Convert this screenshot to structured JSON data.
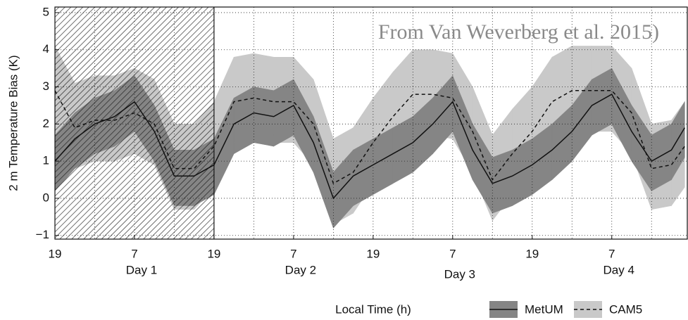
{
  "chart_data": {
    "type": "band-line",
    "annotation": "From Van Weverberg et al. 2015)",
    "y_label": "2 m Temperature Bias (K)",
    "x_label": "Local Time (h)",
    "xlim": [
      0,
      95.5
    ],
    "ylim": [
      -1.1,
      5.15
    ],
    "xticks": [
      {
        "value": 0,
        "label": "19"
      },
      {
        "value": 12,
        "label": "7"
      },
      {
        "value": 24,
        "label": "19"
      },
      {
        "value": 36,
        "label": "7"
      },
      {
        "value": 48,
        "label": "19"
      },
      {
        "value": 60,
        "label": "7"
      },
      {
        "value": 72,
        "label": "19"
      },
      {
        "value": 84,
        "label": "7"
      }
    ],
    "yticks": [
      {
        "value": -1,
        "label": "−1"
      },
      0,
      1,
      2,
      3,
      4,
      5
    ],
    "day_labels": [
      "Day 1",
      "Day 2",
      "Day 3",
      "Day 4"
    ],
    "shaded_region": [
      0,
      24
    ],
    "grid": true,
    "x": [
      0,
      3,
      6,
      9,
      12,
      15,
      18,
      21,
      24,
      27,
      30,
      33,
      36,
      39,
      42,
      45,
      48,
      51,
      54,
      57,
      60,
      63,
      66,
      69,
      72,
      75,
      78,
      81,
      84,
      87,
      90,
      93,
      95
    ],
    "series": [
      {
        "name": "CAM5",
        "color": "#111111",
        "band_color": "#c9c9c9",
        "dash": true,
        "values": [
          2.9,
          1.9,
          2.1,
          2.1,
          2.3,
          2.0,
          0.8,
          0.8,
          1.4,
          2.6,
          2.7,
          2.6,
          2.6,
          2.0,
          0.4,
          0.7,
          1.5,
          2.2,
          2.8,
          2.8,
          2.7,
          1.8,
          0.5,
          1.2,
          1.8,
          2.6,
          2.9,
          2.9,
          2.9,
          2.3,
          0.8,
          0.9,
          1.4
        ],
        "lower": [
          1.8,
          0.8,
          1.0,
          1.0,
          1.2,
          0.9,
          -0.3,
          -0.3,
          0.3,
          1.5,
          1.6,
          1.5,
          1.5,
          0.9,
          -0.7,
          -0.4,
          0.4,
          1.1,
          1.7,
          1.7,
          1.6,
          0.7,
          -0.6,
          0.1,
          0.7,
          1.5,
          1.8,
          1.8,
          1.8,
          1.2,
          -0.3,
          -0.2,
          0.3
        ],
        "upper": [
          4.1,
          3.1,
          3.3,
          3.3,
          3.5,
          3.2,
          2.0,
          2.0,
          2.6,
          3.8,
          3.9,
          3.8,
          3.8,
          3.2,
          1.6,
          1.9,
          2.7,
          3.4,
          4.0,
          4.0,
          3.9,
          3.0,
          1.7,
          2.4,
          3.0,
          3.8,
          4.1,
          4.1,
          4.1,
          3.5,
          2.0,
          2.1,
          2.6
        ]
      },
      {
        "name": "MetUM",
        "color": "#111111",
        "band_color": "#858585",
        "dash": false,
        "values": [
          1.0,
          1.6,
          2.0,
          2.2,
          2.6,
          1.8,
          0.6,
          0.6,
          0.9,
          2.0,
          2.3,
          2.2,
          2.5,
          1.5,
          0.0,
          0.6,
          0.9,
          1.2,
          1.5,
          2.0,
          2.6,
          1.3,
          0.4,
          0.6,
          0.9,
          1.3,
          1.8,
          2.5,
          2.8,
          1.8,
          1.0,
          1.3,
          1.9
        ],
        "lower": [
          0.2,
          0.8,
          1.2,
          1.4,
          1.8,
          1.0,
          -0.2,
          -0.2,
          0.1,
          1.2,
          1.5,
          1.4,
          1.7,
          0.7,
          -0.8,
          -0.2,
          0.1,
          0.4,
          0.7,
          1.2,
          1.8,
          0.5,
          -0.4,
          -0.2,
          0.1,
          0.5,
          1.0,
          1.7,
          2.0,
          1.0,
          0.2,
          0.5,
          1.1
        ],
        "upper": [
          1.7,
          2.3,
          2.7,
          2.9,
          3.3,
          2.5,
          1.3,
          1.3,
          1.6,
          2.7,
          3.0,
          2.9,
          3.2,
          2.2,
          0.7,
          1.3,
          1.6,
          1.9,
          2.2,
          2.7,
          3.3,
          2.0,
          1.1,
          1.3,
          1.6,
          2.0,
          2.5,
          3.2,
          3.5,
          2.5,
          1.7,
          2.0,
          2.6
        ]
      }
    ],
    "legend_order": [
      "MetUM",
      "CAM5"
    ]
  }
}
